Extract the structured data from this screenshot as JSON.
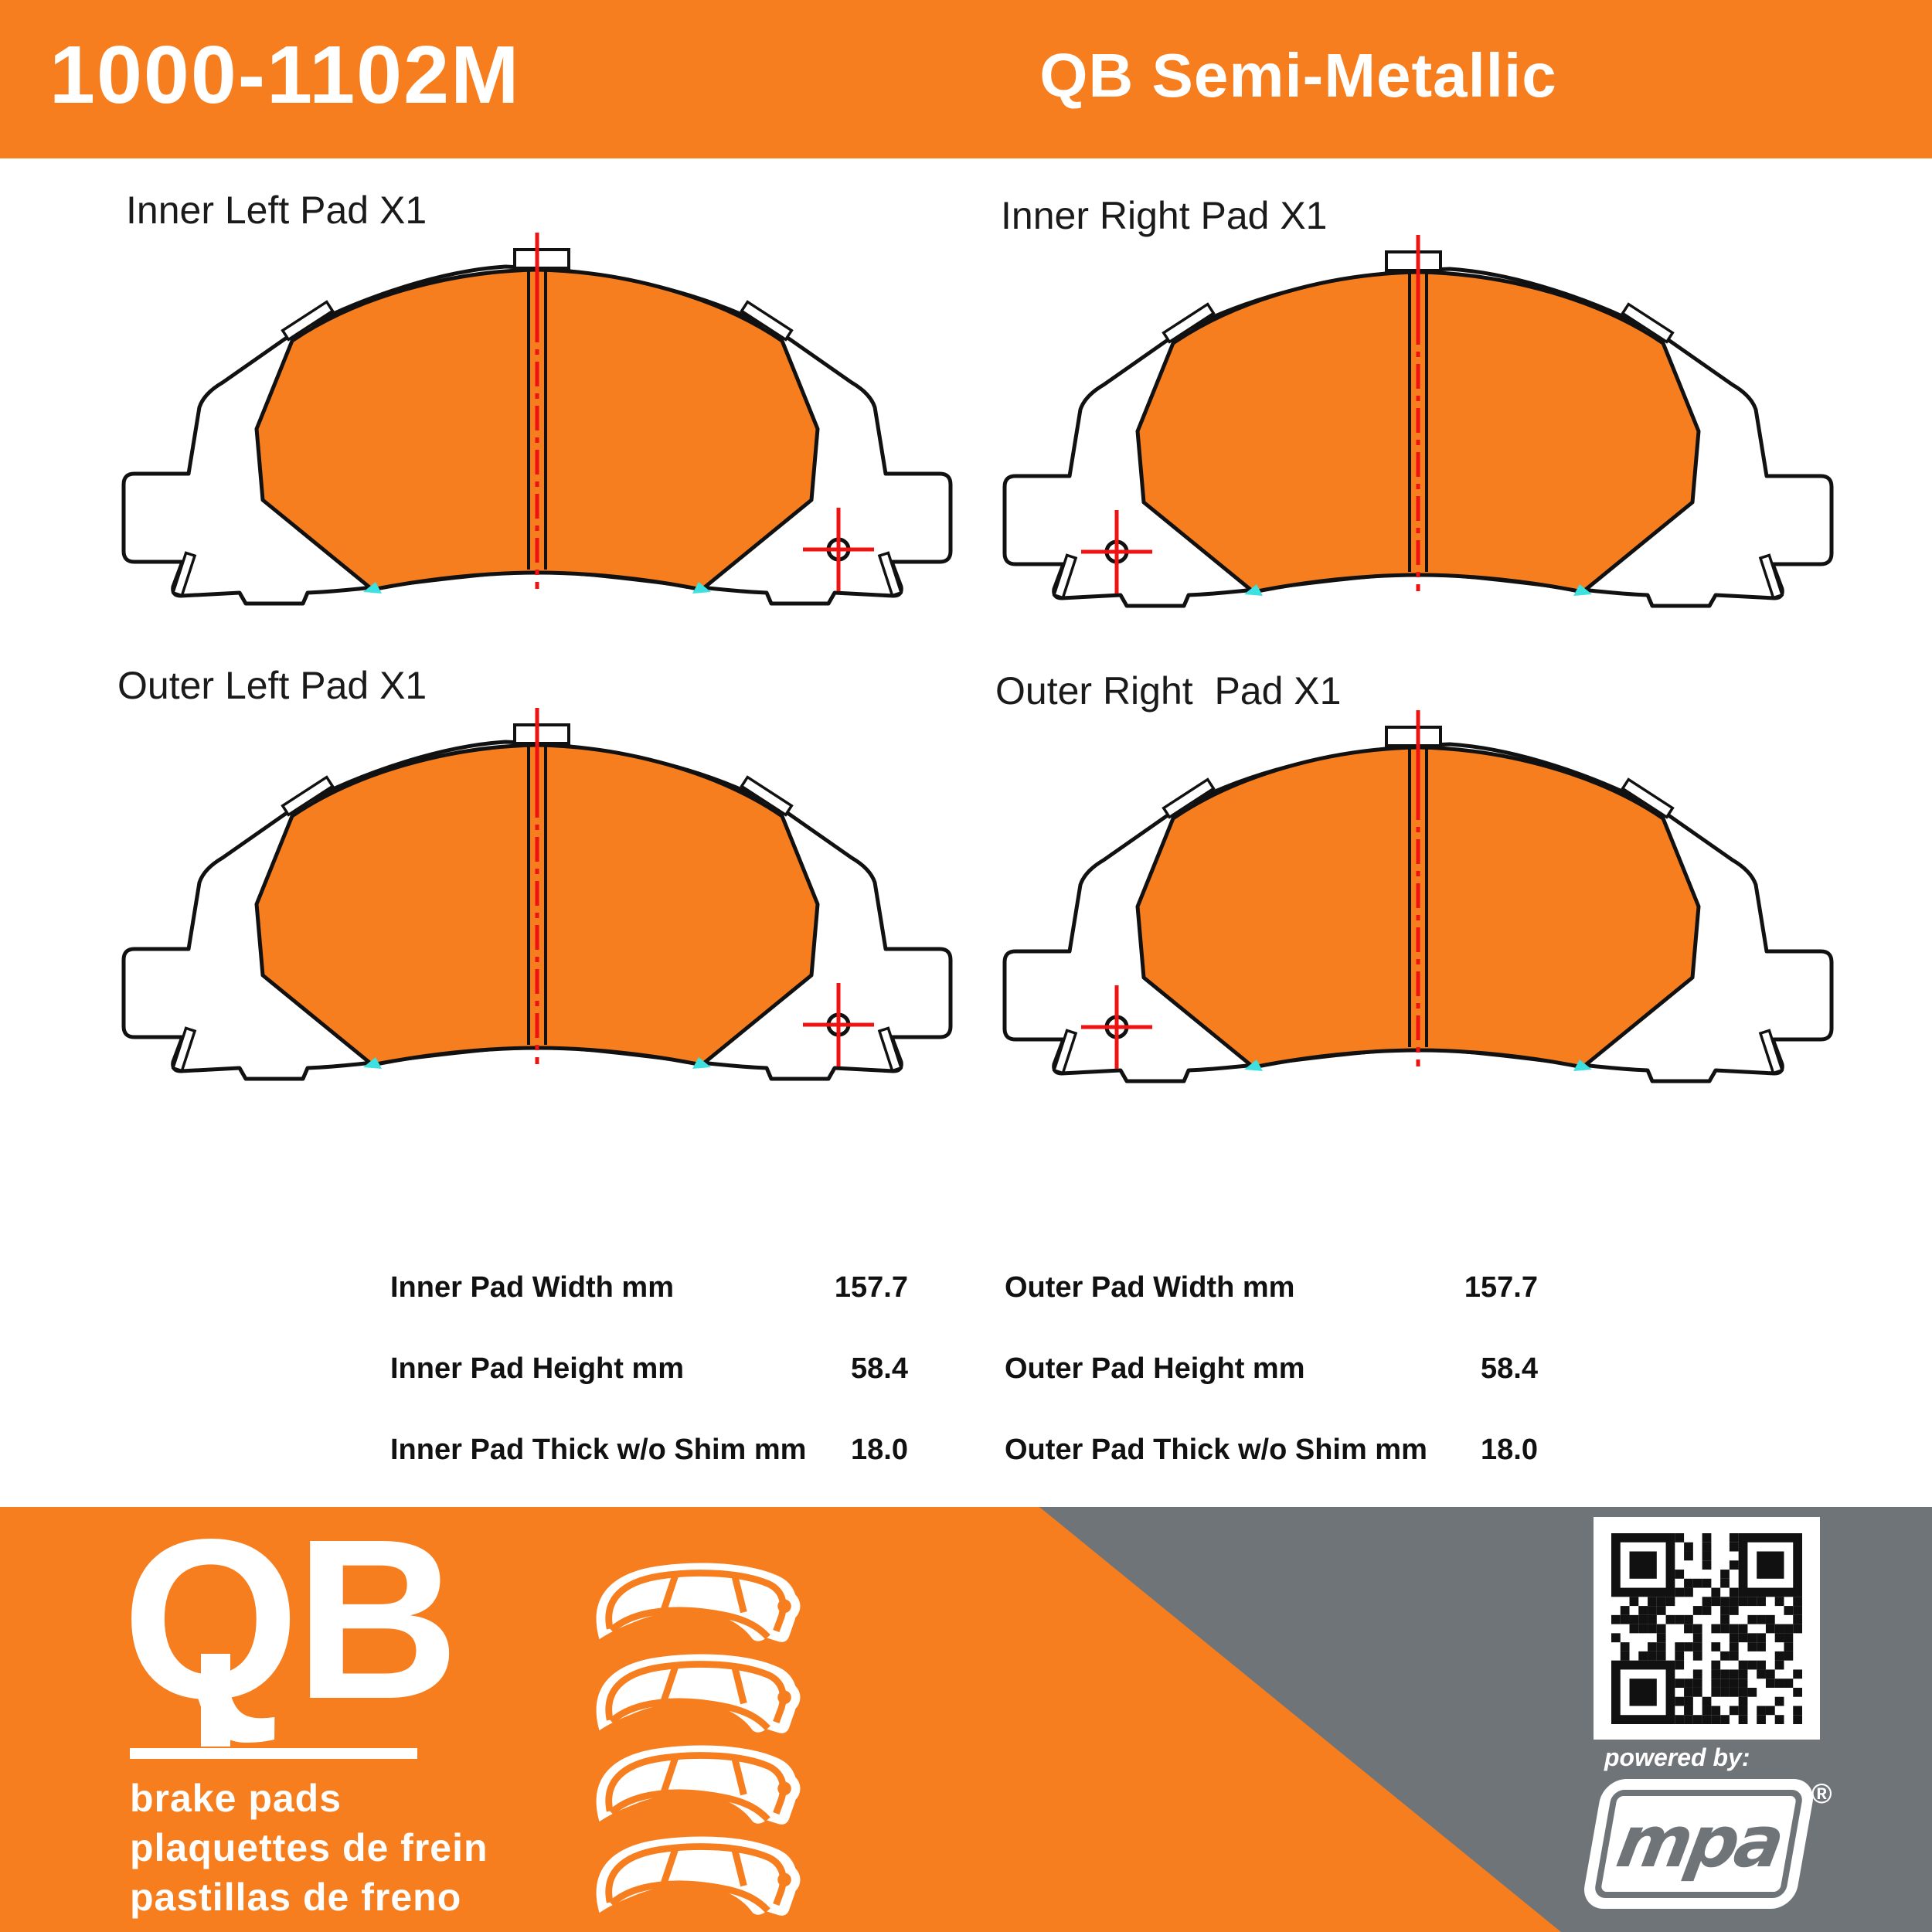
{
  "header": {
    "part_number": "1000-1102M",
    "product_line": "QB Semi-Metallic"
  },
  "pads": [
    {
      "label": "Inner Left Pad X1"
    },
    {
      "label": "Inner Right Pad X1"
    },
    {
      "label": "Outer Left Pad X1"
    },
    {
      "label": "Outer Right  Pad X1"
    }
  ],
  "specs": {
    "columns": [
      {
        "rows": [
          {
            "label": "Inner Pad Width mm",
            "value": "157.7"
          },
          {
            "label": "Inner Pad Height mm",
            "value": "58.4"
          },
          {
            "label": "Inner Pad Thick w/o Shim mm",
            "value": "18.0"
          }
        ]
      },
      {
        "rows": [
          {
            "label": "Outer Pad Width mm",
            "value": "157.7"
          },
          {
            "label": "Outer Pad Height mm",
            "value": "58.4"
          },
          {
            "label": "Outer Pad Thick w/o Shim mm",
            "value": "18.0"
          }
        ]
      }
    ]
  },
  "footer": {
    "logo_text": "QB",
    "tagline_lines": [
      "brake pads",
      "plaquettes de frein",
      "pastillas de freno"
    ],
    "powered_by_label": "powered by:",
    "brand": "mpa",
    "registered_mark": "®",
    "pad_icon_count": 4
  },
  "icons": {
    "qr_code": "qr-code",
    "brake_pad": "brake-pad-icon"
  },
  "colors": {
    "orange": "#F67E1E",
    "gray": "#6F7478",
    "drawing_line": "#111111",
    "centerline_red": "#EE1212",
    "marker_cyan": "#3FE0E0",
    "text_white": "#FFFFFF",
    "text_black": "#111111"
  }
}
